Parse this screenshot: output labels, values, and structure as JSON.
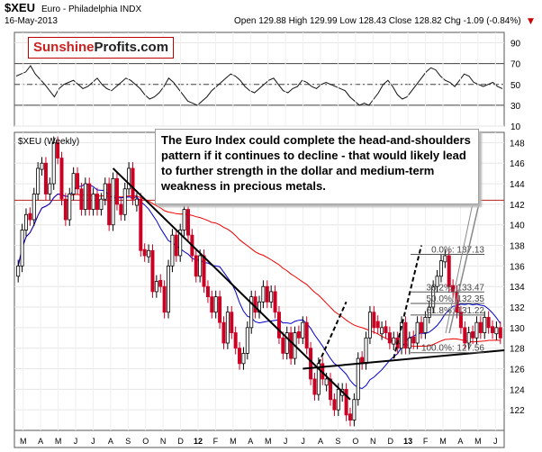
{
  "header": {
    "symbol": "$XEU",
    "name": "Euro - Philadelphia INDX",
    "date": "16-May-2013",
    "ohlc_text": "Open 129.88  High 129.99  Low 128.43  Close 128.82  Chg -1.09 (-0.84%)",
    "down_arrow": "▼",
    "chg_color": "#cc0000"
  },
  "logo": {
    "part1": "Sunshine",
    "part2": "Profits.com"
  },
  "annotation": "The Euro Index could complete the head-and-shoulders pattern if it continues to decline - that would likely lead to further strength in the dollar and medium-term weakness in precious metals.",
  "colors": {
    "up": "#000000",
    "down": "#cc0022",
    "ma_red": "#ee0000",
    "ma_blue": "#0000cc",
    "grid": "#e6e6e6"
  },
  "chart_data": [
    {
      "type": "line",
      "series": [
        {
          "values": [
            58,
            60,
            62,
            68,
            60,
            55,
            50,
            44,
            38,
            46,
            50,
            52,
            54,
            50,
            46,
            48,
            52,
            56,
            50,
            46,
            44,
            48,
            52,
            56,
            54,
            50,
            46,
            40,
            36,
            38,
            42,
            48,
            56,
            52,
            46,
            40,
            34,
            32,
            30,
            34,
            38,
            44,
            48,
            52,
            56,
            60,
            58,
            54,
            48,
            44,
            42,
            46,
            50,
            54,
            56,
            50,
            44,
            42,
            46,
            48,
            54,
            52,
            48,
            46,
            50,
            52,
            50,
            48,
            46,
            44,
            38,
            34,
            30,
            32,
            30,
            36,
            42,
            50,
            54,
            48,
            40,
            36,
            38,
            44,
            50,
            56,
            62,
            66,
            64,
            58,
            54,
            52,
            48,
            54,
            60,
            58,
            52,
            50,
            48,
            50,
            52,
            48,
            46
          ]
        }
      ],
      "ylim": [
        10,
        100
      ],
      "y_ticks": [
        10,
        30,
        50,
        70,
        90
      ],
      "reference_lines": [
        30,
        50,
        70
      ]
    },
    {
      "type": "bar",
      "title": "$XEU (Weekly)",
      "ylim": [
        120,
        149
      ],
      "y_ticks": [
        122,
        124,
        126,
        128,
        130,
        132,
        134,
        136,
        138,
        140,
        142,
        144,
        146,
        148
      ],
      "x_tick_labels": [
        "M",
        "A",
        "M",
        "J",
        "J",
        "A",
        "S",
        "O",
        "N",
        "D",
        "12",
        "F",
        "M",
        "A",
        "M",
        "J",
        "J",
        "A",
        "S",
        "O",
        "N",
        "D",
        "13",
        "F",
        "M",
        "A",
        "M",
        "J"
      ],
      "ohlc": {
        "close": [
          136,
          139.5,
          141,
          140.5,
          143,
          145.5,
          146,
          143,
          144,
          148,
          146.5,
          142.5,
          140.5,
          143,
          145,
          143.5,
          141.5,
          144,
          141.5,
          143,
          141.5,
          142.5,
          144,
          140,
          144.5,
          142,
          141,
          143.5,
          145.5,
          142.5,
          142.5,
          137.5,
          137,
          137.5,
          133.5,
          134.5,
          134,
          131.5,
          136,
          139,
          137,
          139.5,
          141.5,
          139,
          137,
          135,
          137,
          134,
          133,
          131.5,
          133,
          130.5,
          128.5,
          131.5,
          129.5,
          128,
          126.5,
          127.5,
          130,
          133,
          131.5,
          132.5,
          134,
          132.5,
          133.5,
          131.5,
          129,
          127.5,
          129.5,
          127,
          129.5,
          129,
          130.5,
          128,
          125,
          123.5,
          126.5,
          125,
          125,
          123,
          122,
          124,
          124,
          121.5,
          121,
          123,
          127,
          126.5,
          129,
          131.5,
          130,
          130,
          130,
          129.5,
          128.5,
          129,
          128,
          130.5,
          128,
          129,
          128.5,
          130.5,
          129.5,
          131,
          132,
          134,
          135,
          136.5,
          137,
          134,
          133.5,
          131.5,
          130,
          128.5,
          129.5,
          129,
          130.5,
          129.5,
          131,
          130,
          129.5,
          130,
          129
        ],
        "up_flags": [
          1,
          1,
          1,
          0,
          1,
          1,
          1,
          0,
          1,
          1,
          0,
          0,
          0,
          1,
          1,
          0,
          0,
          1,
          0,
          1,
          0,
          1,
          1,
          0,
          1,
          0,
          0,
          1,
          1,
          0,
          1,
          0,
          0,
          1,
          0,
          1,
          0,
          0,
          1,
          1,
          0,
          1,
          1,
          0,
          0,
          0,
          1,
          0,
          0,
          0,
          1,
          0,
          0,
          1,
          0,
          0,
          0,
          1,
          1,
          1,
          0,
          1,
          1,
          0,
          1,
          0,
          0,
          0,
          1,
          0,
          1,
          0,
          1,
          0,
          0,
          0,
          1,
          0,
          1,
          0,
          0,
          1,
          1,
          0,
          0,
          1,
          1,
          0,
          1,
          1,
          0,
          0,
          1,
          0,
          0,
          1,
          0,
          1,
          0,
          1,
          0,
          1,
          0,
          1,
          1,
          1,
          1,
          1,
          1,
          0,
          0,
          0,
          0,
          0,
          1,
          0,
          1,
          0,
          1,
          0,
          0,
          1,
          0
        ]
      },
      "labels": [
        {
          "text": "0.0%: 137.13",
          "y": 137.13
        },
        {
          "text": "38.2%: 133.47",
          "y": 133.47
        },
        {
          "text": "50.0%: 132.35",
          "y": 132.35
        },
        {
          "text": "61.8%: 131.22",
          "y": 131.22
        },
        {
          "text": "100.0%: 127.56",
          "y": 127.56
        }
      ],
      "reference_lines": [
        142.4
      ]
    }
  ]
}
